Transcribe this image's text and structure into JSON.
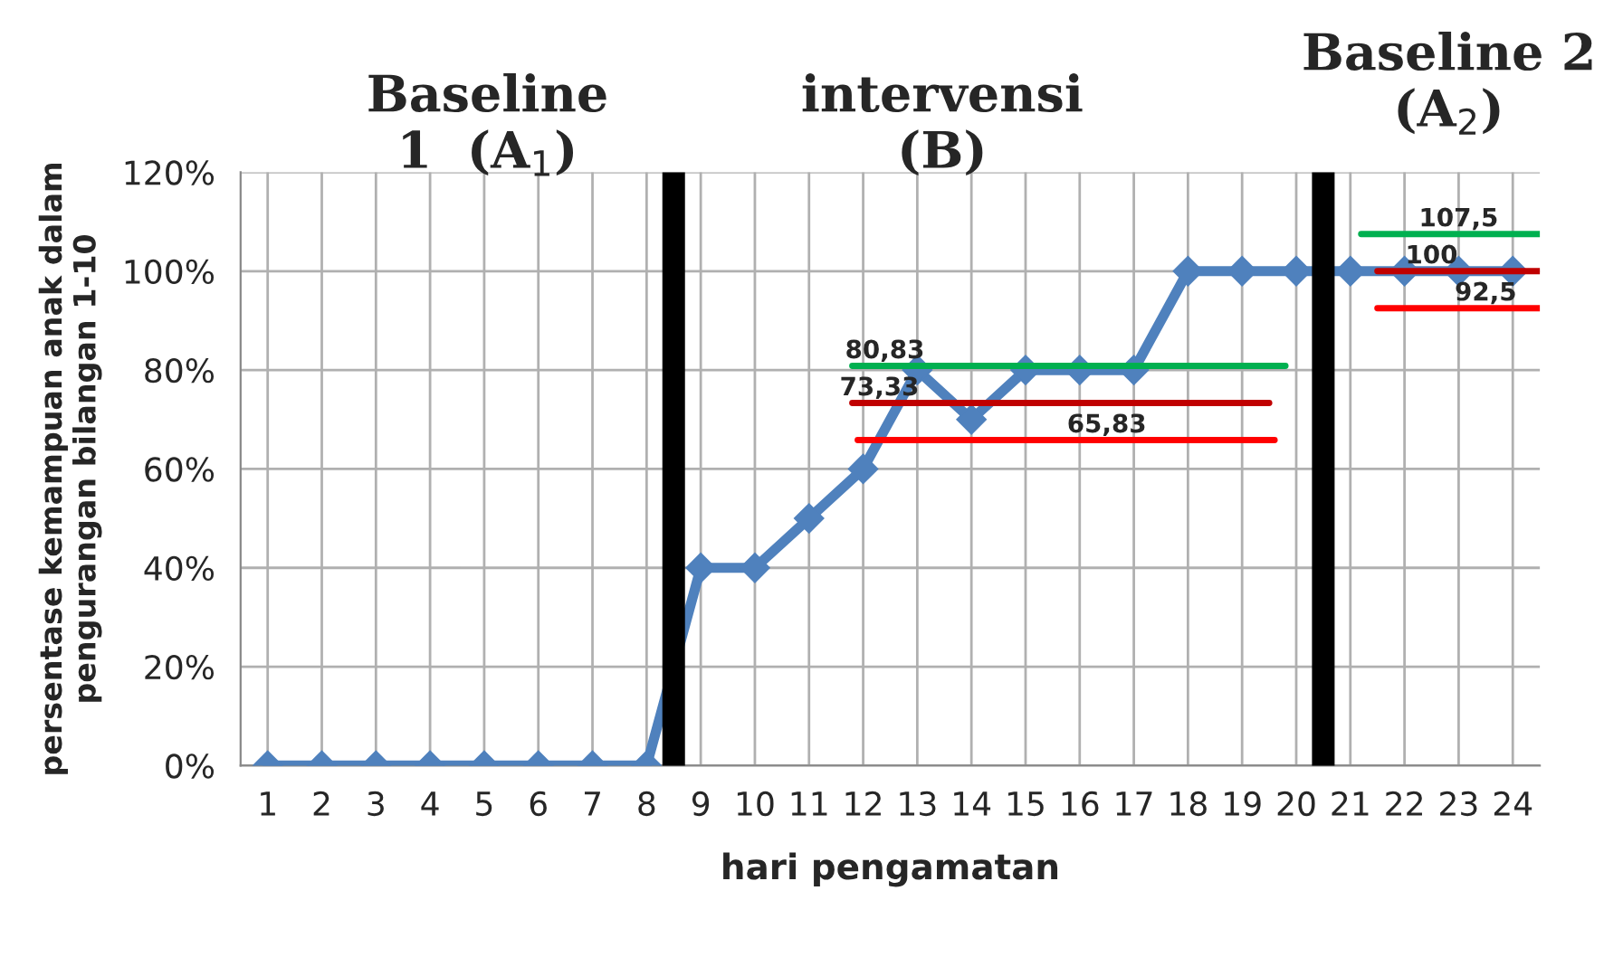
{
  "chart_data": {
    "type": "line",
    "xlabel": "hari pengamatan",
    "ylabel": "persentase kemampuan anak dalam\npengurangan bilangan 1-10",
    "x": [
      1,
      2,
      3,
      4,
      5,
      6,
      7,
      8,
      9,
      10,
      11,
      12,
      13,
      14,
      15,
      16,
      17,
      18,
      19,
      20,
      21,
      22,
      23,
      24
    ],
    "xlim": [
      0.5,
      24.5
    ],
    "xticks": [
      1,
      2,
      3,
      4,
      5,
      6,
      7,
      8,
      9,
      10,
      11,
      12,
      13,
      14,
      15,
      16,
      17,
      18,
      19,
      20,
      21,
      22,
      23,
      24
    ],
    "ylim": [
      0,
      120
    ],
    "yticks": [
      {
        "value": 0,
        "label": "0%"
      },
      {
        "value": 20,
        "label": "20%"
      },
      {
        "value": 40,
        "label": "40%"
      },
      {
        "value": 60,
        "label": "60%"
      },
      {
        "value": 80,
        "label": "80%"
      },
      {
        "value": 100,
        "label": "100%"
      },
      {
        "value": 120,
        "label": "120%"
      }
    ],
    "grid": true,
    "legend": false,
    "series": [
      {
        "color": "#4f81bd",
        "marker": "diamond",
        "values": [
          0,
          0,
          0,
          0,
          0,
          0,
          0,
          0,
          40,
          40,
          50,
          60,
          80,
          70,
          80,
          80,
          80,
          100,
          100,
          100,
          100,
          100,
          100,
          100
        ]
      },
      {
        "type": "line",
        "color": "#00b050",
        "marker": "none",
        "x": [
          11.8,
          19.8
        ],
        "values": [
          80.83,
          80.83
        ]
      },
      {
        "type": "line",
        "color": "#c00000",
        "marker": "none",
        "x": [
          11.8,
          19.5
        ],
        "values": [
          73.33,
          73.33
        ]
      },
      {
        "type": "line",
        "color": "#ff0000",
        "marker": "none",
        "x": [
          11.9,
          19.6
        ],
        "values": [
          65.83,
          65.83
        ]
      },
      {
        "type": "line",
        "color": "#00b050",
        "marker": "none",
        "x": [
          21.2,
          24.5
        ],
        "values": [
          107.5,
          107.5
        ]
      },
      {
        "type": "line",
        "color": "#c00000",
        "marker": "none",
        "x": [
          21.5,
          24.5
        ],
        "values": [
          100,
          100
        ]
      },
      {
        "type": "line",
        "color": "#ff0000",
        "marker": "none",
        "x": [
          21.5,
          24.5
        ],
        "values": [
          92.5,
          92.5
        ]
      }
    ],
    "ref_lines": [
      {
        "axis": "x",
        "value": 8.5,
        "color": "#000000"
      },
      {
        "axis": "x",
        "value": 20.5,
        "color": "#000000"
      }
    ],
    "annotations": [
      "Baseline\n1  (A$_{1}$)",
      "intervensi\n(B)",
      "Baseline 2\n(A$_{2}$)",
      {
        "text": "80,83",
        "x": 12.4,
        "y": 80.83
      },
      {
        "text": "73,33",
        "x": 12.3,
        "y": 73.33
      },
      {
        "text": "65,83",
        "x": 16.5,
        "y": 65.83
      },
      {
        "text": "107,5",
        "x": 23,
        "y": 107.5
      },
      {
        "text": "100",
        "x": 22.5,
        "y": 100
      },
      {
        "text": "92,5",
        "x": 23.5,
        "y": 92.5
      }
    ]
  }
}
